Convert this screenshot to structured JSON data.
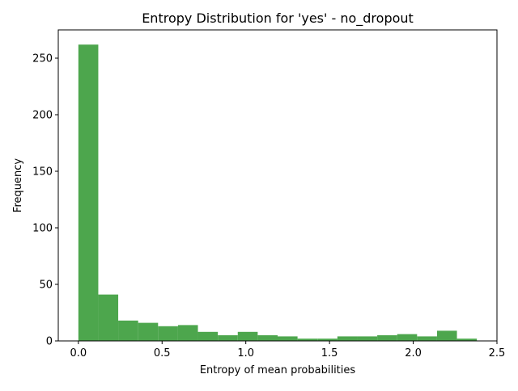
{
  "chart_data": {
    "type": "bar",
    "title": "Entropy Distribution for 'yes' - no_dropout",
    "xlabel": "Entropy of mean probabilities",
    "ylabel": "Frequency",
    "xlim": [
      -0.12,
      2.5
    ],
    "ylim": [
      0,
      275
    ],
    "x_ticks": [
      {
        "value": 0.0,
        "label": "0.0"
      },
      {
        "value": 0.5,
        "label": "0.5"
      },
      {
        "value": 1.0,
        "label": "1.0"
      },
      {
        "value": 1.5,
        "label": "1.5"
      },
      {
        "value": 2.0,
        "label": "2.0"
      },
      {
        "value": 2.5,
        "label": "2.5"
      }
    ],
    "y_ticks": [
      {
        "value": 0,
        "label": "0"
      },
      {
        "value": 50,
        "label": "50"
      },
      {
        "value": 100,
        "label": "100"
      },
      {
        "value": 150,
        "label": "150"
      },
      {
        "value": 200,
        "label": "200"
      },
      {
        "value": 250,
        "label": "250"
      }
    ],
    "bin_range": [
      0.0,
      2.38
    ],
    "counts": [
      262,
      41,
      18,
      16,
      13,
      14,
      8,
      5,
      8,
      5,
      4,
      2,
      2,
      4,
      4,
      5,
      6,
      4,
      9,
      2
    ],
    "bar_color": "#4da64d",
    "grid": false,
    "legend": false
  }
}
